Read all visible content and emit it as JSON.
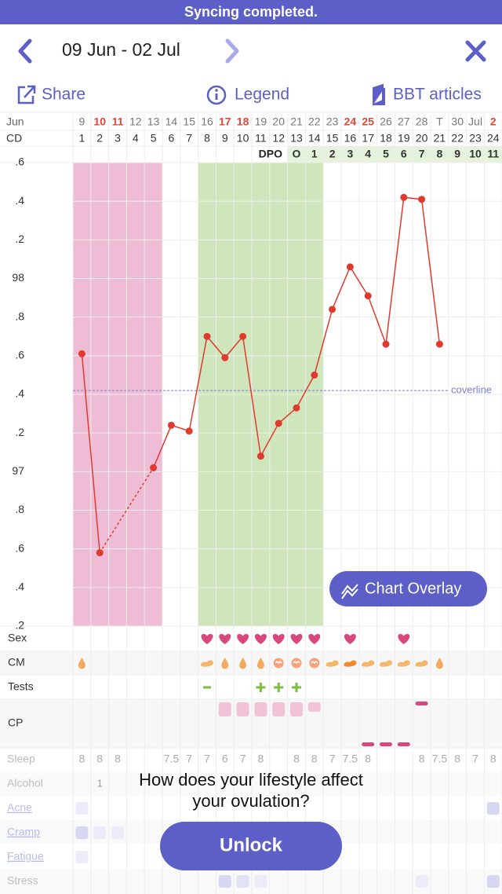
{
  "banner": "Syncing completed.",
  "header": {
    "title": "09 Jun - 02 Jul"
  },
  "toolbar": {
    "share": "Share",
    "legend": "Legend",
    "articles": "BBT articles"
  },
  "chart_data": {
    "type": "line",
    "month_label": "Jun",
    "cd_label": "CD",
    "dpo_label": "DPO",
    "categories": [
      "9",
      "10",
      "11",
      "12",
      "13",
      "14",
      "15",
      "16",
      "17",
      "18",
      "19",
      "20",
      "21",
      "22",
      "23",
      "24",
      "25",
      "26",
      "27",
      "28",
      "T",
      "30",
      "Jul",
      "2"
    ],
    "cd": [
      1,
      2,
      3,
      4,
      5,
      6,
      7,
      8,
      9,
      10,
      11,
      12,
      13,
      14,
      15,
      16,
      17,
      18,
      19,
      20,
      21,
      22,
      23,
      24
    ],
    "dpo": [
      null,
      null,
      null,
      null,
      null,
      null,
      null,
      null,
      null,
      null,
      null,
      null,
      "O",
      1,
      2,
      3,
      4,
      5,
      6,
      7,
      8,
      9,
      10,
      11
    ],
    "values": [
      97.61,
      96.58,
      null,
      null,
      97.02,
      97.24,
      97.21,
      97.7,
      97.59,
      97.7,
      97.08,
      97.25,
      97.33,
      97.5,
      97.84,
      98.06,
      97.91,
      97.66,
      98.42,
      98.41,
      97.66,
      null,
      null,
      null
    ],
    "color": "#e03a2f",
    "ylim": [
      96.2,
      98.6
    ],
    "yticks": [
      {
        "value": 96.2,
        "label": ".2"
      },
      {
        "value": 96.4,
        "label": ".4"
      },
      {
        "value": 96.6,
        "label": ".6"
      },
      {
        "value": 96.8,
        "label": ".8"
      },
      97,
      {
        "value": 97.2,
        "label": ".2"
      },
      {
        "value": 97.4,
        "label": ".4"
      },
      {
        "value": 97.6,
        "label": ".6"
      },
      {
        "value": 97.8,
        "label": ".8"
      },
      98,
      {
        "value": 98.2,
        "label": ".2"
      },
      {
        "value": 98.4,
        "label": ".4"
      },
      {
        "value": 98.6,
        "label": ".6"
      }
    ],
    "grid": true,
    "coverline": {
      "value": 97.42,
      "label": "coverline",
      "color": "#7b7fd0"
    },
    "period_cd": [
      1,
      5
    ],
    "period_color": "#eebdd5",
    "fertile_cd": [
      8,
      14
    ],
    "fertile_color": "#cfe6bd"
  },
  "rows": {
    "sex": "Sex",
    "cm": "CM",
    "tests": "Tests",
    "cp": "CP"
  },
  "lifestyle": {
    "labels": [
      "Sleep",
      "Alcohol",
      "Acne",
      "Cramp",
      "Fatigue",
      "Stress"
    ],
    "sleep": [
      8,
      8,
      8,
      null,
      null,
      7.5,
      7,
      7,
      6,
      7,
      8,
      null,
      8,
      8,
      7,
      7.5,
      8,
      null,
      null,
      8,
      7.5,
      8,
      7,
      8
    ],
    "alcohol": [
      null,
      1,
      null,
      null,
      null,
      null,
      null,
      null,
      null,
      null,
      null,
      null,
      null,
      null,
      null,
      null,
      null,
      null,
      null,
      null,
      null,
      null,
      null,
      null
    ]
  },
  "overlay_button": "Chart Overlay",
  "paywall": {
    "line1": "How does your lifestyle affect",
    "line2": "your ovulation?",
    "button": "Unlock"
  }
}
